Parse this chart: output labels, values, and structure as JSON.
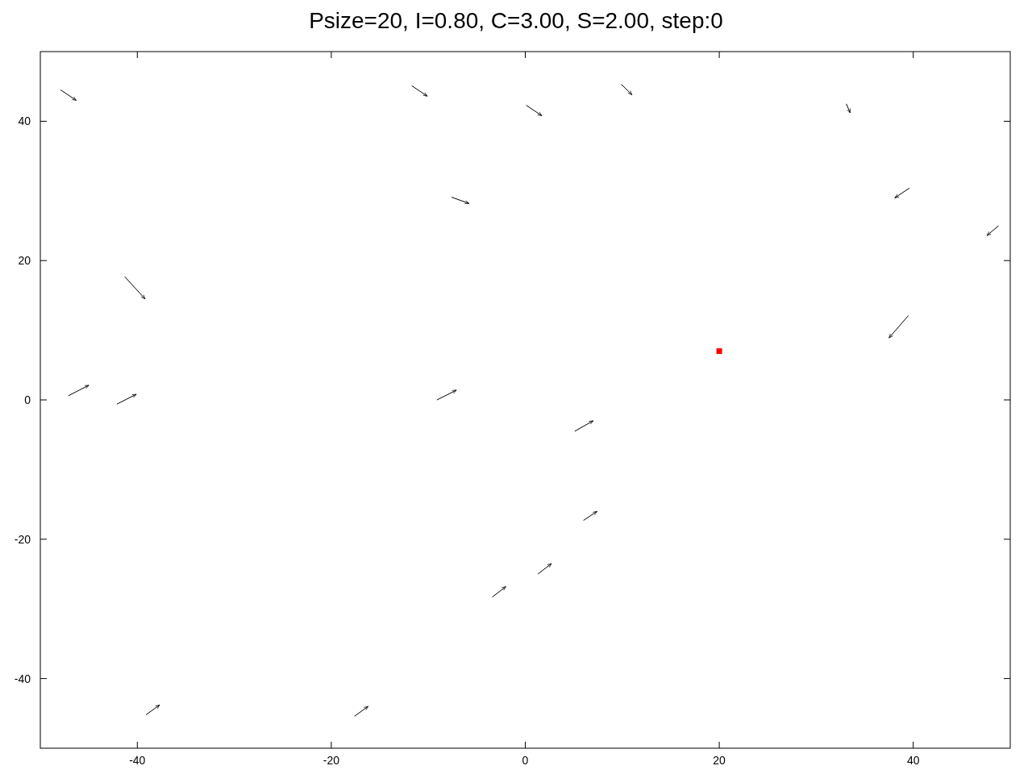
{
  "chart_data": {
    "type": "line",
    "title": "Psize=20, I=0.80, C=3.00, S=2.00, step:0",
    "xlim": [
      -50,
      50
    ],
    "ylim": [
      -50,
      50
    ],
    "xticks": [
      -40,
      -20,
      0,
      20,
      40
    ],
    "yticks": [
      -40,
      -20,
      0,
      20,
      40
    ],
    "grid": false,
    "series": [
      {
        "color": "#000000",
        "x": [
          -47.9,
          -46.3
        ],
        "values": [
          44.5,
          43.0
        ]
      },
      {
        "color": "#000000",
        "x": [
          -11.7,
          -10.1
        ],
        "values": [
          45.1,
          43.6
        ]
      },
      {
        "color": "#000000",
        "x": [
          0.1,
          1.7
        ],
        "values": [
          42.3,
          40.8
        ]
      },
      {
        "color": "#000000",
        "x": [
          9.9,
          11.0
        ],
        "values": [
          45.3,
          43.8
        ]
      },
      {
        "color": "#000000",
        "x": [
          33.1,
          33.5
        ],
        "values": [
          42.5,
          41.2
        ]
      },
      {
        "color": "#000000",
        "x": [
          -7.6,
          -5.8
        ],
        "values": [
          29.1,
          28.2
        ]
      },
      {
        "color": "#000000",
        "x": [
          39.6,
          38.1
        ],
        "values": [
          30.4,
          29.0
        ]
      },
      {
        "color": "#000000",
        "x": [
          48.8,
          47.6
        ],
        "values": [
          25.0,
          23.6
        ]
      },
      {
        "color": "#000000",
        "x": [
          -41.3,
          -39.2
        ],
        "values": [
          17.7,
          14.5
        ]
      },
      {
        "color": "#000000",
        "x": [
          39.5,
          37.5
        ],
        "values": [
          12.1,
          8.9
        ]
      },
      {
        "color": "#000000",
        "x": [
          -47.1,
          -45.0
        ],
        "values": [
          0.6,
          2.1
        ]
      },
      {
        "color": "#000000",
        "x": [
          -42.1,
          -40.1
        ],
        "values": [
          -0.6,
          0.8
        ]
      },
      {
        "color": "#000000",
        "x": [
          -9.1,
          -7.1
        ],
        "values": [
          0.0,
          1.4
        ]
      },
      {
        "color": "#000000",
        "x": [
          5.1,
          7.0
        ],
        "values": [
          -4.5,
          -3.0
        ]
      },
      {
        "color": "#000000",
        "x": [
          6.0,
          7.4
        ],
        "values": [
          -17.3,
          -16.0
        ]
      },
      {
        "color": "#000000",
        "x": [
          1.3,
          2.7
        ],
        "values": [
          -25.0,
          -23.5
        ]
      },
      {
        "color": "#000000",
        "x": [
          -3.4,
          -2.0
        ],
        "values": [
          -28.3,
          -26.8
        ]
      },
      {
        "color": "#000000",
        "x": [
          -39.1,
          -37.7
        ],
        "values": [
          -45.2,
          -43.8
        ]
      },
      {
        "color": "#000000",
        "x": [
          -17.6,
          -16.2
        ],
        "values": [
          -45.4,
          -44.0
        ]
      },
      {
        "type": "scatter",
        "marker": "square",
        "color": "#ff0000",
        "x": [
          20
        ],
        "values": [
          7
        ]
      }
    ]
  }
}
